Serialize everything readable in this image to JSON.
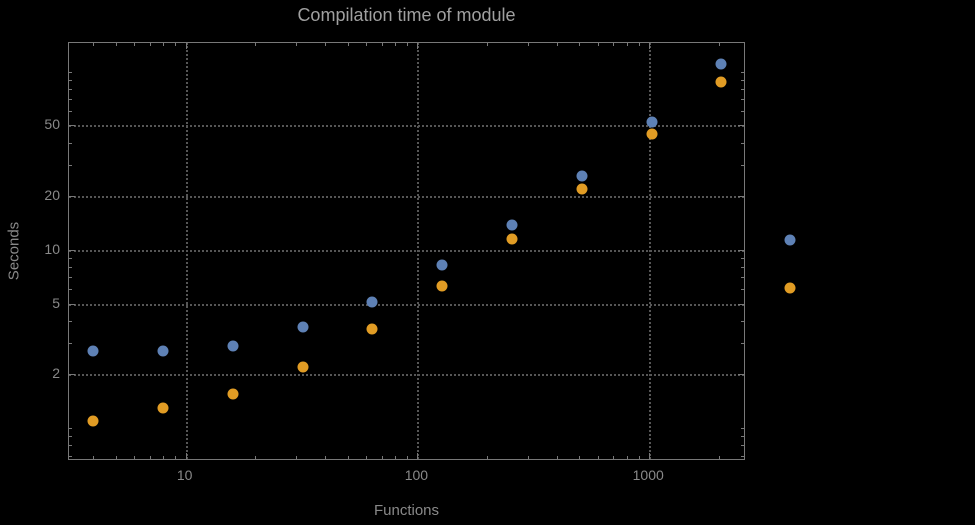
{
  "chart_data": {
    "type": "scatter",
    "title": "Compilation time of module",
    "xlabel": "Functions",
    "ylabel": "Seconds",
    "xscale": "log",
    "yscale": "log",
    "xlim": [
      3.14,
      2564
    ],
    "ylim": [
      0.67,
      145
    ],
    "grid": true,
    "legend_position": "right-outside",
    "x_ticks": [
      {
        "value": 10,
        "label": "10"
      },
      {
        "value": 100,
        "label": "100"
      },
      {
        "value": 1000,
        "label": "1000"
      }
    ],
    "y_ticks": [
      {
        "value": 2,
        "label": "2"
      },
      {
        "value": 5,
        "label": "5"
      },
      {
        "value": 10,
        "label": "10"
      },
      {
        "value": 20,
        "label": "20"
      },
      {
        "value": 50,
        "label": "50"
      }
    ],
    "series": [
      {
        "name": "series-1-blue",
        "color": "#5e81b5",
        "x": [
          4,
          8,
          16,
          32,
          64,
          128,
          256,
          512,
          1024,
          2048
        ],
        "y": [
          2.7,
          2.7,
          2.9,
          3.7,
          5.1,
          8.2,
          13.8,
          26,
          52,
          110
        ]
      },
      {
        "name": "series-2-orange",
        "color": "#e19c24",
        "x": [
          4,
          8,
          16,
          32,
          64,
          128,
          256,
          512,
          1024,
          2048
        ],
        "y": [
          1.1,
          1.3,
          1.55,
          2.2,
          3.6,
          6.3,
          11.5,
          22,
          45,
          88
        ]
      }
    ],
    "legend": {
      "items": [
        {
          "color": "#5e81b5",
          "label": ""
        },
        {
          "color": "#e19c24",
          "label": ""
        }
      ]
    }
  },
  "colors": {
    "background": "#000000",
    "frame": "#787878",
    "grid": "#565656",
    "title_text": "#a0a0a0",
    "label_text": "#898989",
    "series_blue": "#5e81b5",
    "series_orange": "#e19c24"
  }
}
